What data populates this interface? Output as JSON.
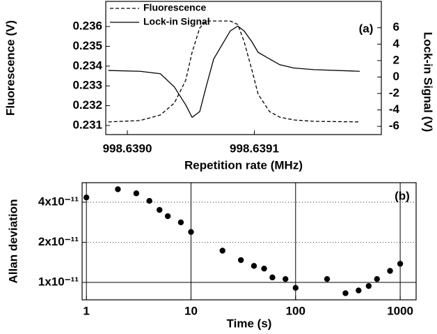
{
  "chart_data": [
    {
      "type": "line",
      "xlabel": "Repetition rate (MHz)",
      "ylabel": "Fluorescence (V)",
      "y2label": "Lock-in Signal (V)",
      "annotation": "(a)",
      "x": [
        998.638985,
        998.63901,
        998.639026,
        998.639037,
        998.639046,
        998.639051,
        998.639057,
        998.639062,
        998.639068,
        998.639081,
        998.639087,
        998.639092,
        998.639098,
        998.639103,
        998.639112,
        998.63912,
        998.639131,
        998.639147,
        998.639183
      ],
      "series": [
        {
          "name": "Fluorescence",
          "color": "#000000",
          "linestyle": "dashed",
          "values": [
            0.23118,
            0.23125,
            0.23153,
            0.23213,
            0.23329,
            0.2347,
            0.23593,
            0.23628,
            0.23628,
            0.23628,
            0.2361,
            0.23523,
            0.23382,
            0.23258,
            0.2317,
            0.23142,
            0.23128,
            0.23121,
            0.23118
          ]
        },
        {
          "name": "Lock-in Signal",
          "color": "#000000",
          "linestyle": "solid",
          "axis": "y2",
          "values": [
            0.8,
            0.7,
            0.4,
            -1.2,
            -3.4,
            -4.9,
            -4.2,
            -1.2,
            2.2,
            5.6,
            6.2,
            5.6,
            4.3,
            3.0,
            2.2,
            1.5,
            1.1,
            0.9,
            0.7
          ]
        }
      ],
      "xlim": [
        998.638983,
        998.6392
      ],
      "xticks": [
        {
          "value": 998.639,
          "label": "998.6390"
        },
        {
          "value": 998.6391,
          "label": "998.6391"
        }
      ],
      "ylim": [
        0.23054,
        0.23727
      ],
      "yticks": [
        0.231,
        0.232,
        0.233,
        0.234,
        0.235,
        0.236
      ],
      "y2lim": [
        -7.0,
        9.2
      ],
      "y2ticks": [
        -6,
        -4,
        -2,
        0,
        2,
        4,
        6
      ],
      "legend": "upper left"
    },
    {
      "type": "scatter",
      "xlabel": "Time (s)",
      "ylabel": "Allan deviation",
      "annotation": "(b)",
      "x": [
        1,
        2,
        3,
        4,
        5,
        6,
        8,
        10,
        20,
        30,
        40,
        50,
        60,
        80,
        100,
        200,
        300,
        400,
        500,
        600,
        800,
        1000
      ],
      "values": [
        4.34e-11,
        5e-11,
        4.66e-11,
        4.09e-11,
        3.5e-11,
        3.14e-11,
        2.82e-11,
        2.39e-11,
        1.73e-11,
        1.47e-11,
        1.33e-11,
        1.27e-11,
        1.09e-11,
        1.06e-11,
        9.1e-12,
        1.06e-11,
        8.3e-12,
        8.7e-12,
        9.4e-12,
        1.06e-11,
        1.22e-11,
        1.38e-11
      ],
      "color": "#000000",
      "xscale": "log",
      "yscale": "log",
      "xlim": [
        0.91,
        1420
      ],
      "xticks": [
        1,
        10,
        100,
        1000
      ],
      "ylim": [
        7.4e-12,
        5.6e-11
      ],
      "yticks": [
        {
          "value": 1e-11,
          "label": "1x10⁻¹¹"
        },
        {
          "value": 2e-11,
          "label": "2x10⁻¹¹"
        },
        {
          "value": 4e-11,
          "label": "4x10⁻¹¹"
        }
      ],
      "grid": true
    }
  ]
}
